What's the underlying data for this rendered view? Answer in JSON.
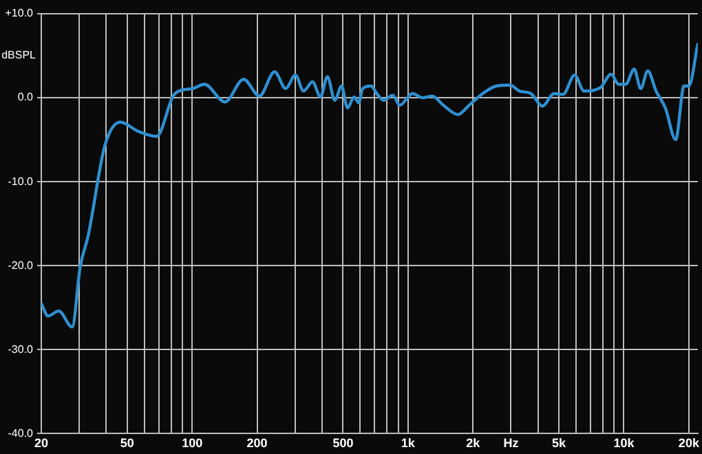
{
  "chart_data": {
    "type": "line",
    "ylabel": "dBSPL",
    "log": "x",
    "grid": true,
    "legend": false,
    "marker": "none",
    "line_style": "solid",
    "xlim": [
      20,
      22000
    ],
    "ylim": [
      -40,
      10
    ],
    "xticks": [
      20,
      {
        "value": 30,
        "label": null
      },
      {
        "value": 40,
        "label": null
      },
      50,
      {
        "value": 60,
        "label": null
      },
      {
        "value": 70,
        "label": null
      },
      {
        "value": 80,
        "label": null
      },
      {
        "value": 90,
        "label": null
      },
      100,
      200,
      {
        "value": 300,
        "label": null
      },
      {
        "value": 400,
        "label": null
      },
      500,
      {
        "value": 600,
        "label": null
      },
      {
        "value": 700,
        "label": null
      },
      {
        "value": 800,
        "label": null
      },
      {
        "value": 900,
        "label": null
      },
      {
        "value": 1000,
        "label": "1k"
      },
      {
        "value": 2000,
        "label": "2k"
      },
      {
        "value": 3000,
        "label": "Hz"
      },
      {
        "value": 4000,
        "label": null
      },
      {
        "value": 5000,
        "label": "5k"
      },
      {
        "value": 6000,
        "label": null
      },
      {
        "value": 7000,
        "label": null
      },
      {
        "value": 8000,
        "label": null
      },
      {
        "value": 9000,
        "label": null
      },
      {
        "value": 10000,
        "label": "10k"
      },
      {
        "value": 20000,
        "label": "20k"
      }
    ],
    "yticks": [
      {
        "value": 10,
        "label": "+10.0"
      },
      {
        "value": 0,
        "label": "0.0"
      },
      {
        "value": -10,
        "label": "-10.0"
      },
      {
        "value": -20,
        "label": "-20.0"
      },
      {
        "value": -30,
        "label": "-30.0"
      },
      {
        "value": -40,
        "label": "-40.0"
      }
    ],
    "series": [
      {
        "color": "#2f8fd0",
        "x": [
          20,
          21.5,
          24.1,
          27.8,
          30.3,
          33,
          39.4,
          46.5,
          56.2,
          68.5,
          81.6,
          87,
          101,
          114,
          142,
          173,
          205,
          241,
          271,
          301,
          328,
          361,
          393,
          423,
          458,
          492,
          524,
          563,
          590,
          617,
          674,
          716,
          771,
          851,
          915,
          1049,
          1170,
          1293,
          1460,
          1700,
          1918,
          2220,
          2567,
          2972,
          3281,
          3711,
          4196,
          4744,
          5228,
          5914,
          6537,
          7788,
          8720,
          9460,
          10200,
          11160,
          11970,
          12900,
          14100,
          15560,
          17380,
          19000,
          20000,
          22000
        ],
        "values": [
          -24.5,
          -26.0,
          -25.4,
          -27.3,
          -20.1,
          -16.4,
          -5.7,
          -2.9,
          -4.0,
          -4.6,
          0.2,
          0.8,
          1.1,
          1.6,
          -0.5,
          2.2,
          0.2,
          3.1,
          1.1,
          2.7,
          0.8,
          1.9,
          0.1,
          2.5,
          -0.3,
          1.4,
          -1.2,
          0.1,
          -0.6,
          1.1,
          1.4,
          0.5,
          -0.3,
          0.3,
          -0.9,
          0.5,
          0,
          0.2,
          -0.9,
          -2.0,
          -0.9,
          0.5,
          1.4,
          1.5,
          0.8,
          0.5,
          -1.0,
          0.5,
          0.4,
          2.7,
          0.8,
          1.2,
          2.8,
          1.6,
          1.6,
          3.4,
          1.1,
          3.2,
          0.8,
          -1.2,
          -5.0,
          1.4,
          1.4,
          6.4
        ]
      }
    ]
  }
}
